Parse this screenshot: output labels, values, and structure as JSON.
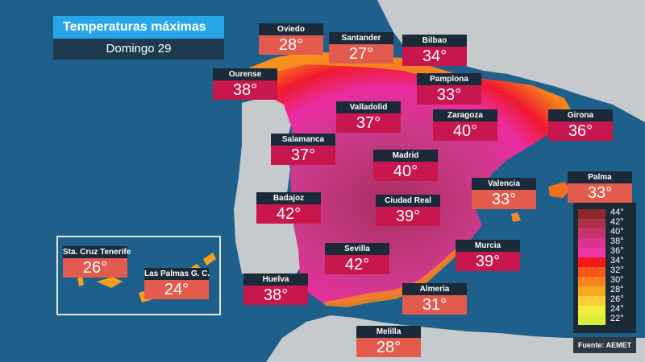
{
  "title": "Temperaturas máximas",
  "subtitle": "Domingo 29",
  "cities": [
    {
      "name": "Oviedo",
      "temp": "28°",
      "color": "#e35b4d"
    },
    {
      "name": "Santander",
      "temp": "27°",
      "color": "#e35b4d"
    },
    {
      "name": "Bilbao",
      "temp": "34°",
      "color": "#c8174e"
    },
    {
      "name": "Ourense",
      "temp": "38°",
      "color": "#c8174e"
    },
    {
      "name": "Pamplona",
      "temp": "33°",
      "color": "#c8174e"
    },
    {
      "name": "Valladolid",
      "temp": "37°",
      "color": "#c8174e"
    },
    {
      "name": "Zaragoza",
      "temp": "40°",
      "color": "#c8174e"
    },
    {
      "name": "Girona",
      "temp": "36°",
      "color": "#c8174e"
    },
    {
      "name": "Salamanca",
      "temp": "37°",
      "color": "#c8174e"
    },
    {
      "name": "Madrid",
      "temp": "40°",
      "color": "#c8174e"
    },
    {
      "name": "Palma",
      "temp": "33°",
      "color": "#e35b4d"
    },
    {
      "name": "Valencia",
      "temp": "33°",
      "color": "#e35b4d"
    },
    {
      "name": "Badajoz",
      "temp": "42°",
      "color": "#c8174e"
    },
    {
      "name": "Ciudad Real",
      "temp": "39°",
      "color": "#c8174e"
    },
    {
      "name": "Sta. Cruz Tenerife",
      "temp": "26°",
      "color": "#e35b4d"
    },
    {
      "name": "Las Palmas G. C.",
      "temp": "24°",
      "color": "#e35b4d"
    },
    {
      "name": "Sevilla",
      "temp": "42°",
      "color": "#c8174e"
    },
    {
      "name": "Murcia",
      "temp": "39°",
      "color": "#c8174e"
    },
    {
      "name": "Huelva",
      "temp": "38°",
      "color": "#c8174e"
    },
    {
      "name": "Almería",
      "temp": "31°",
      "color": "#e35b4d"
    },
    {
      "name": "Melilla",
      "temp": "28°",
      "color": "#e35b4d"
    }
  ],
  "legend": [
    {
      "label": "44°",
      "color": "#8b2a2a"
    },
    {
      "label": "42°",
      "color": "#b0304a"
    },
    {
      "label": "40°",
      "color": "#c8336a"
    },
    {
      "label": "38°",
      "color": "#d9358a"
    },
    {
      "label": "36°",
      "color": "#ee3aa9"
    },
    {
      "label": "34°",
      "color": "#f5181b"
    },
    {
      "label": "32°",
      "color": "#f5561a"
    },
    {
      "label": "30°",
      "color": "#f7841c"
    },
    {
      "label": "28°",
      "color": "#f8a91f"
    },
    {
      "label": "26°",
      "color": "#fbd035"
    },
    {
      "label": "24°",
      "color": "#f4ec3a"
    },
    {
      "label": "22°",
      "color": "#d9f03a"
    }
  ],
  "source": "Fuente: AEMET",
  "colors": {
    "sea": "#1f5f8b",
    "land": "#c7cacc",
    "title_accent": "#29a6e8"
  }
}
